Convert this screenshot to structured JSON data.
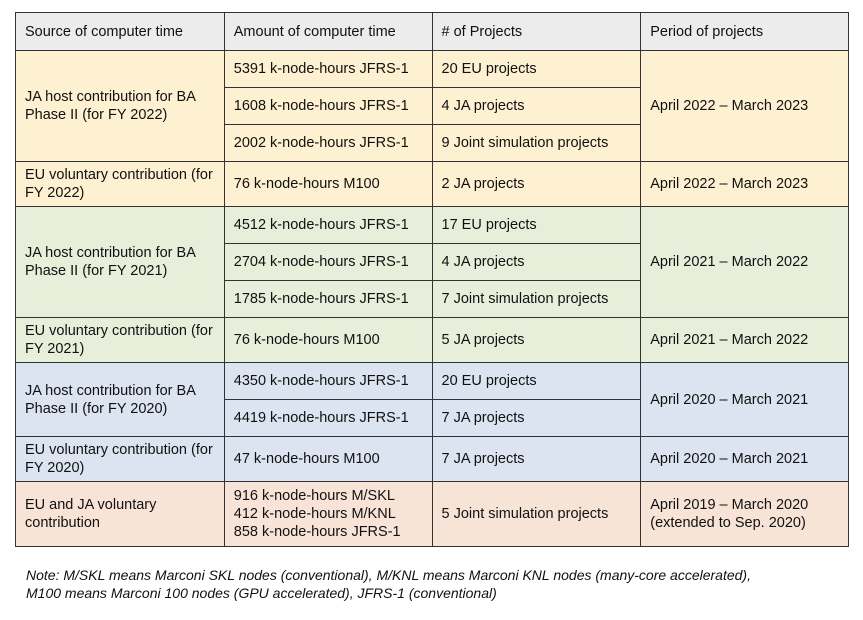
{
  "headers": [
    "Source of computer time",
    "Amount of computer time",
    "# of Projects",
    "Period of projects"
  ],
  "groups": [
    {
      "source": "JA host contribution for BA Phase II (for FY 2022)",
      "period": "April 2022 – March 2023",
      "rows": [
        [
          "5391 k-node-hours JFRS-1",
          "20 EU projects"
        ],
        [
          "1608 k-node-hours JFRS-1",
          "4 JA projects"
        ],
        [
          "2002 k-node-hours JFRS-1",
          "9 Joint simulation projects"
        ]
      ]
    },
    {
      "source": "EU voluntary contribution (for FY 2022)",
      "period": "April 2022 – March 2023",
      "rows": [
        [
          "76 k-node-hours M100",
          "2 JA projects"
        ]
      ]
    },
    {
      "source": "JA host contribution for BA Phase II (for FY 2021)",
      "period": "April 2021 – March 2022",
      "rows": [
        [
          "4512 k-node-hours JFRS-1",
          "17 EU projects"
        ],
        [
          "2704 k-node-hours JFRS-1",
          "4 JA projects"
        ],
        [
          "1785 k-node-hours JFRS-1",
          "7 Joint simulation projects"
        ]
      ]
    },
    {
      "source": "EU voluntary contribution (for FY 2021)",
      "period": "April 2021 – March 2022",
      "rows": [
        [
          "76 k-node-hours M100",
          "5 JA projects"
        ]
      ]
    },
    {
      "source": "JA host contribution for BA Phase II (for FY 2020)",
      "period": "April 2020 – March 2021",
      "rows": [
        [
          "4350 k-node-hours JFRS-1",
          "20 EU projects"
        ],
        [
          "4419 k-node-hours JFRS-1",
          "7 JA projects"
        ]
      ]
    },
    {
      "source": "EU voluntary contribution (for FY 2020)",
      "period": "April 2020 – March 2021",
      "rows": [
        [
          "47 k-node-hours M100",
          "7 JA projects"
        ]
      ]
    }
  ],
  "last": {
    "source": "EU and JA voluntary contribution",
    "amounts": [
      "916 k-node-hours M/SKL",
      "412 k-node-hours M/KNL",
      "858 k-node-hours JFRS-1"
    ],
    "projects": "5 Joint simulation projects",
    "period": [
      "April 2019 – March 2020",
      "(extended to Sep. 2020)"
    ]
  },
  "note": [
    "Note: M/SKL means Marconi SKL nodes (conventional), M/KNL means Marconi KNL nodes (many-core accelerated),",
    "M100 means Marconi 100 nodes (GPU accelerated), JFRS-1 (conventional)"
  ]
}
